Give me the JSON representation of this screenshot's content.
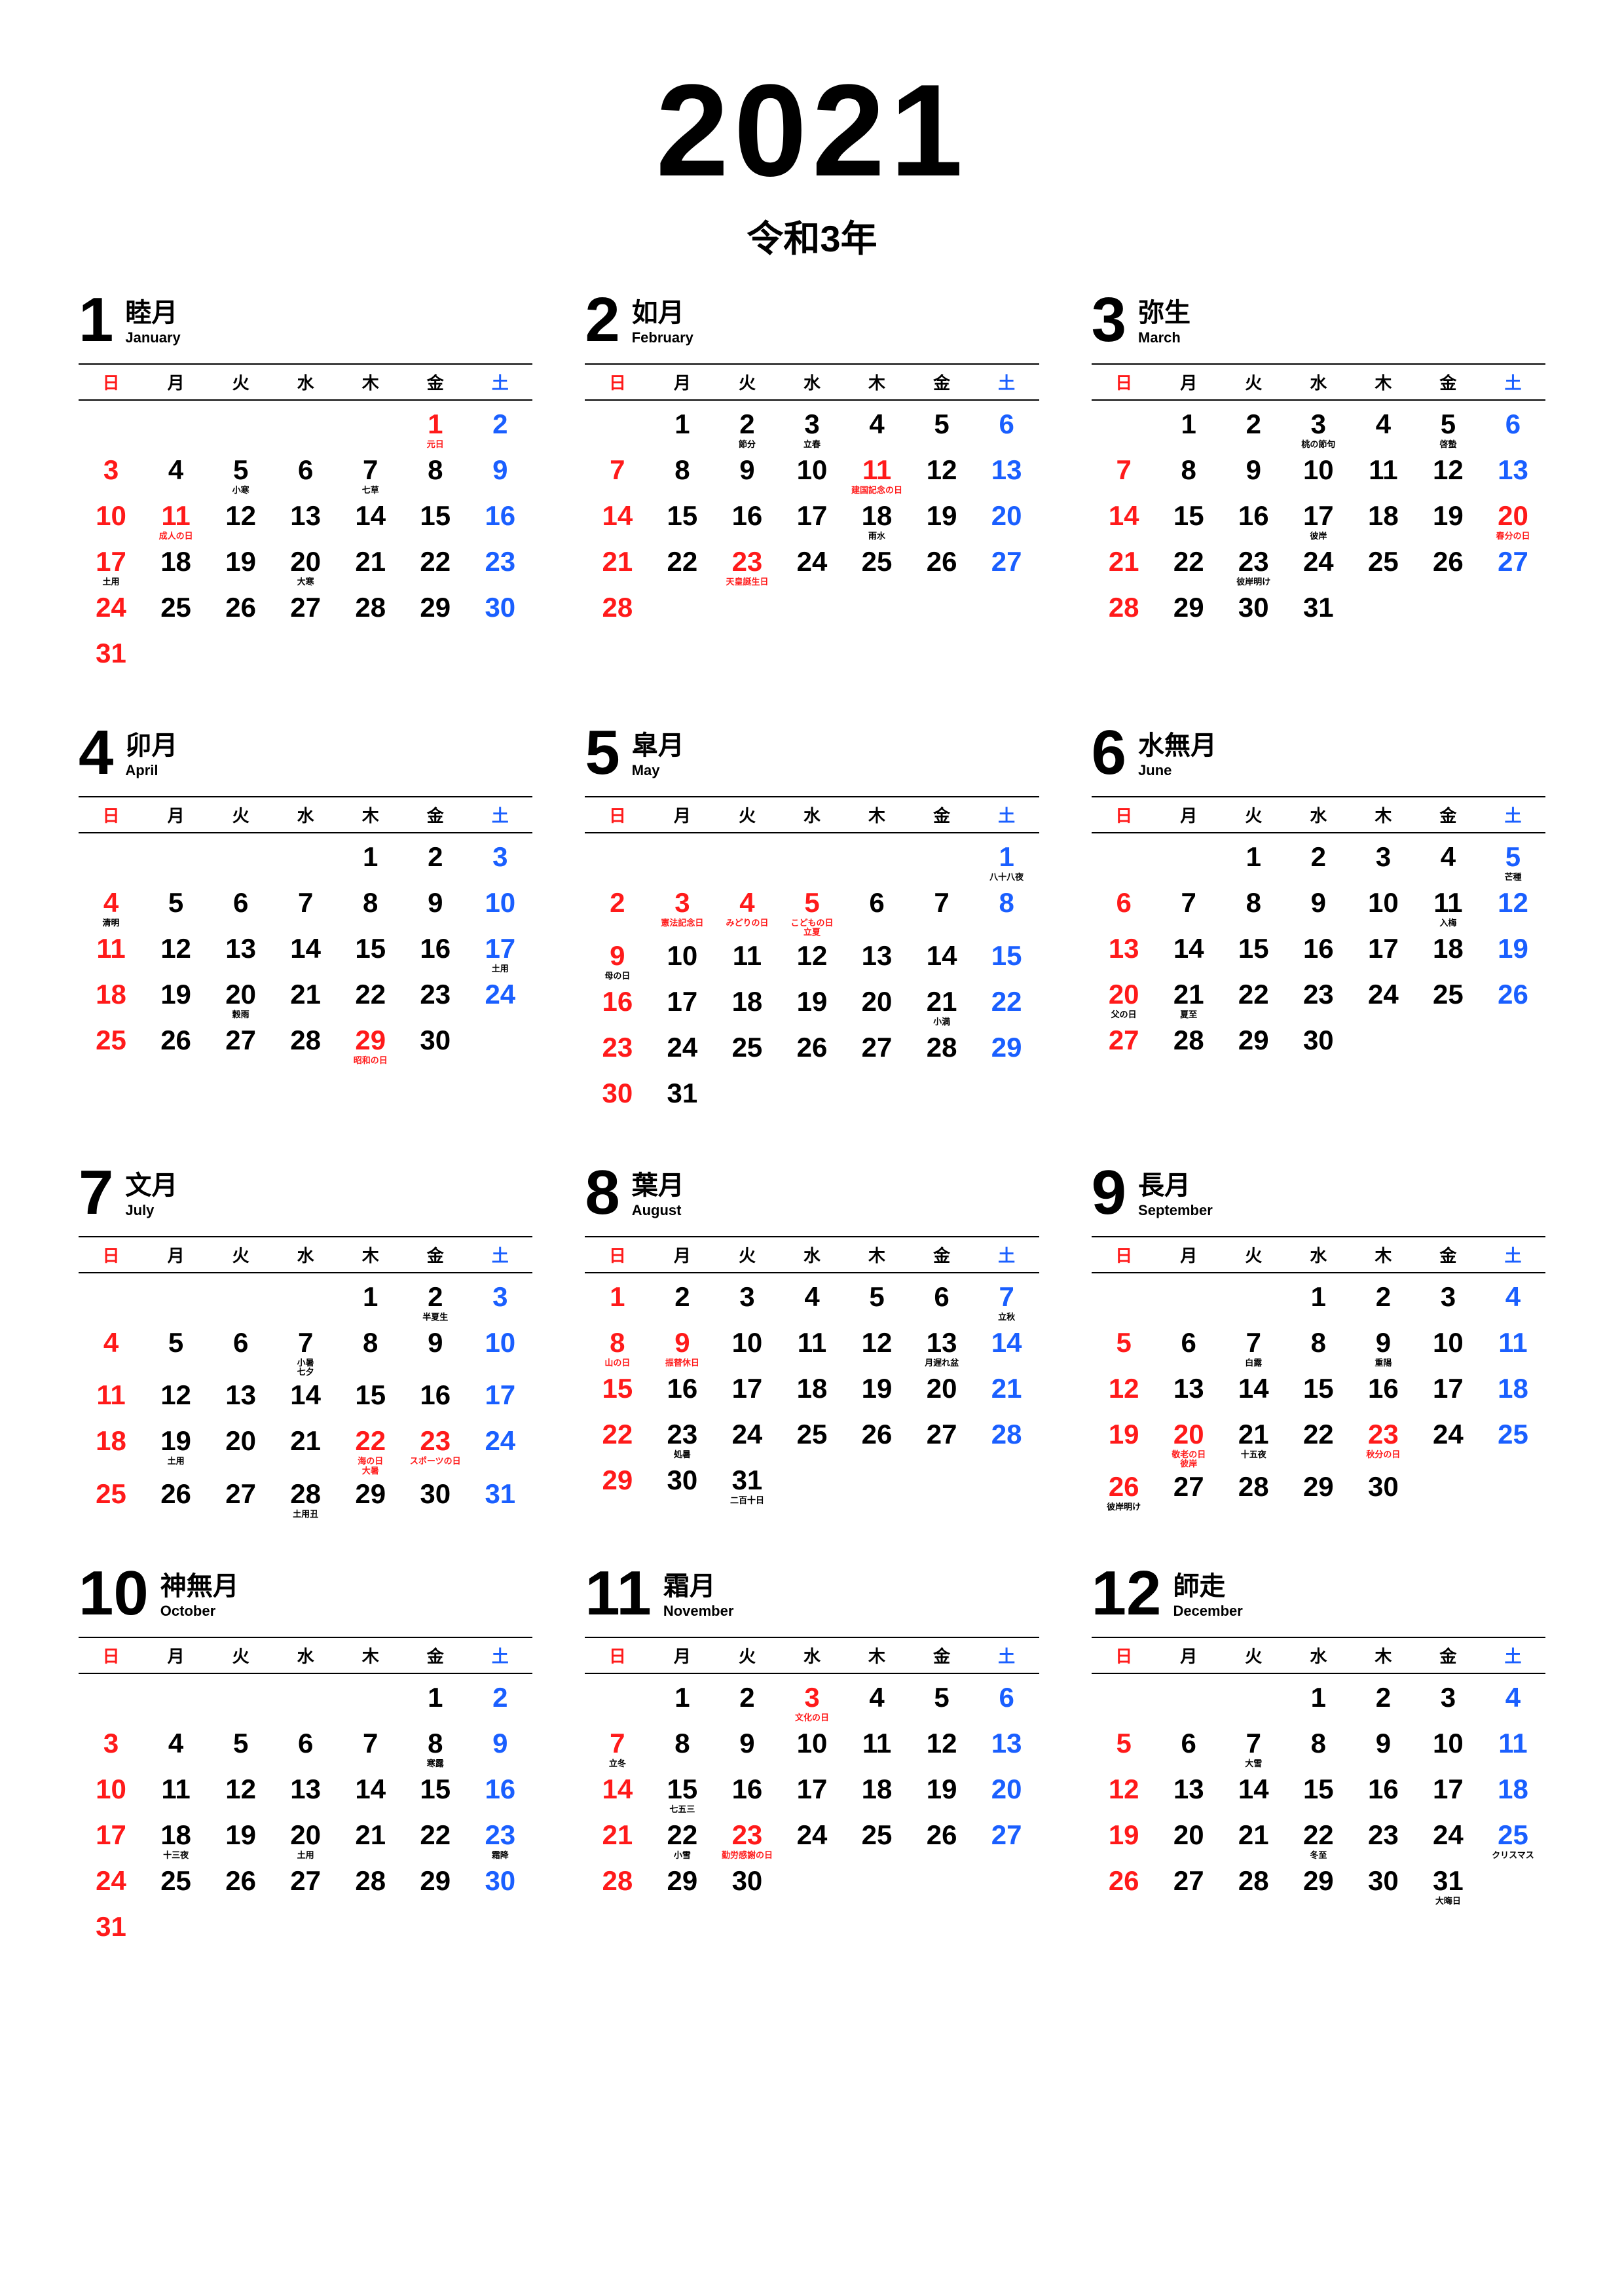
{
  "colors": {
    "sunday": "#ff1a1a",
    "saturday": "#1a5fff",
    "weekday": "#000000",
    "holiday": "#ff1a1a",
    "background": "#ffffff"
  },
  "typography": {
    "year_main_fontsize": 200,
    "year_sub_fontsize": 56,
    "month_num_fontsize": 96,
    "month_kanji_fontsize": 40,
    "month_sub_fontsize": 22,
    "dow_fontsize": 26,
    "day_fontsize": 42,
    "note_fontsize": 13
  },
  "header": {
    "year": "2021",
    "era": "令和3年"
  },
  "dowLabels": [
    "日",
    "月",
    "火",
    "水",
    "木",
    "金",
    "土"
  ],
  "months": [
    {
      "num": "1",
      "kanji": "睦月",
      "sub": "January",
      "startDow": 5,
      "daysInMonth": 31,
      "holidays": {
        "1": "元日",
        "11": "成人の日"
      },
      "notes": {
        "5": "小寒",
        "7": "七草",
        "17": "土用",
        "20": "大寒"
      }
    },
    {
      "num": "2",
      "kanji": "如月",
      "sub": "February",
      "startDow": 1,
      "daysInMonth": 28,
      "holidays": {
        "11": "建国記念の日",
        "23": "天皇誕生日"
      },
      "notes": {
        "2": "節分",
        "3": "立春",
        "18": "雨水"
      }
    },
    {
      "num": "3",
      "kanji": "弥生",
      "sub": "March",
      "startDow": 1,
      "daysInMonth": 31,
      "holidays": {
        "20": "春分の日"
      },
      "notes": {
        "3": "桃の節句",
        "5": "啓蟄",
        "17": "彼岸",
        "23": "彼岸明け"
      }
    },
    {
      "num": "4",
      "kanji": "卯月",
      "sub": "April",
      "startDow": 4,
      "daysInMonth": 30,
      "holidays": {
        "29": "昭和の日"
      },
      "notes": {
        "4": "清明",
        "17": "土用",
        "20": "穀雨"
      }
    },
    {
      "num": "5",
      "kanji": "皐月",
      "sub": "May",
      "startDow": 6,
      "daysInMonth": 31,
      "holidays": {
        "3": "憲法記念日",
        "4": "みどりの日",
        "5": "こどもの日"
      },
      "notes": {
        "1": "八十八夜",
        "5": "立夏",
        "9": "母の日",
        "21": "小満"
      }
    },
    {
      "num": "6",
      "kanji": "水無月",
      "sub": "June",
      "startDow": 2,
      "daysInMonth": 30,
      "holidays": {},
      "notes": {
        "5": "芒種",
        "11": "入梅",
        "20": "父の日",
        "21": "夏至"
      }
    },
    {
      "num": "7",
      "kanji": "文月",
      "sub": "July",
      "startDow": 4,
      "daysInMonth": 31,
      "holidays": {
        "22": "海の日",
        "23": "スポーツの日"
      },
      "notes": {
        "2": "半夏生",
        "7": "小暑\n七夕",
        "19": "土用",
        "22": "大暑",
        "28": "土用丑"
      }
    },
    {
      "num": "8",
      "kanji": "葉月",
      "sub": "August",
      "startDow": 0,
      "daysInMonth": 31,
      "holidays": {
        "8": "山の日",
        "9": "振替休日"
      },
      "notes": {
        "7": "立秋",
        "13": "月遅れ盆",
        "23": "処暑",
        "31": "二百十日"
      }
    },
    {
      "num": "9",
      "kanji": "長月",
      "sub": "September",
      "startDow": 3,
      "daysInMonth": 30,
      "holidays": {
        "20": "敬老の日",
        "23": "秋分の日"
      },
      "notes": {
        "7": "白露",
        "9": "重陽",
        "20": "彼岸",
        "21": "十五夜",
        "26": "彼岸明け"
      }
    },
    {
      "num": "10",
      "kanji": "神無月",
      "sub": "October",
      "startDow": 5,
      "daysInMonth": 31,
      "holidays": {},
      "notes": {
        "8": "寒露",
        "18": "十三夜",
        "20": "土用",
        "23": "霜降"
      }
    },
    {
      "num": "11",
      "kanji": "霜月",
      "sub": "November",
      "startDow": 1,
      "daysInMonth": 30,
      "holidays": {
        "3": "文化の日",
        "23": "勤労感謝の日"
      },
      "notes": {
        "7": "立冬",
        "15": "七五三",
        "22": "小雪"
      }
    },
    {
      "num": "12",
      "kanji": "師走",
      "sub": "December",
      "startDow": 3,
      "daysInMonth": 31,
      "holidays": {},
      "notes": {
        "7": "大雪",
        "22": "冬至",
        "25": "クリスマス",
        "31": "大晦日"
      }
    }
  ]
}
